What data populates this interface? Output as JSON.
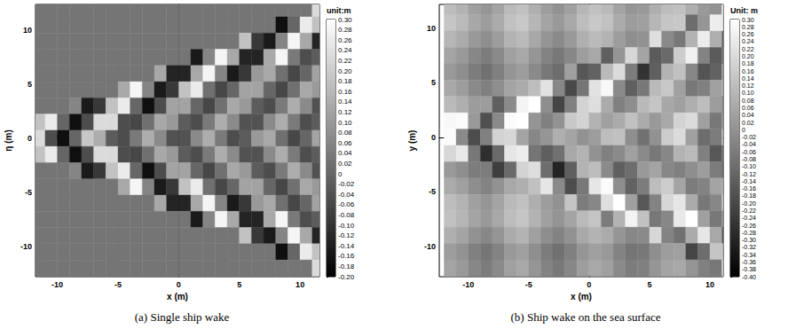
{
  "chart_data": [
    {
      "type": "heatmap",
      "title": "(a) Single ship wake",
      "x_label": "x (m)",
      "y_label": "η (m)",
      "xlim": [
        -11.8,
        11.6
      ],
      "ylim": [
        -12.8,
        12.4
      ],
      "xticks": [
        -10,
        -5,
        0,
        5,
        10
      ],
      "yticks": [
        -10,
        -5,
        0,
        5,
        10
      ],
      "grid": false,
      "x": [
        -11.5,
        -10.5,
        -9.5,
        -8.5,
        -7.5,
        -6.5,
        -5.5,
        -4.5,
        -3.5,
        -2.5,
        -1.5,
        -0.5,
        0.5,
        1.5,
        2.5,
        3.5,
        4.5,
        5.5,
        6.5,
        7.5,
        8.5,
        9.5,
        10.5,
        11.5
      ],
      "y": [
        12,
        10.5,
        9,
        7.5,
        6,
        4.5,
        3,
        1.5,
        0,
        -1.5,
        -3,
        -4.5,
        -6,
        -7.5,
        -9,
        -10.5,
        -12
      ],
      "z": [
        [
          0.03,
          0.03,
          0.03,
          0.03,
          0.03,
          0.03,
          0.03,
          0.03,
          0.03,
          0.03,
          0.03,
          0.03,
          0.03,
          0.03,
          0.03,
          0.03,
          0.03,
          0.03,
          0.03,
          0.03,
          0.03,
          0.03,
          0.03,
          0.23
        ],
        [
          0.03,
          0.03,
          0.03,
          0.03,
          0.03,
          0.03,
          0.03,
          0.03,
          0.03,
          0.03,
          0.03,
          0.03,
          0.03,
          0.03,
          0.03,
          0.03,
          0.03,
          0.03,
          0.03,
          0.03,
          -0.17,
          0,
          0.26,
          0.18
        ],
        [
          0.03,
          0.03,
          0.03,
          0.03,
          0.03,
          0.03,
          0.03,
          0.03,
          0.03,
          0.03,
          0.03,
          0.03,
          0.03,
          0.03,
          0.03,
          0.03,
          0.03,
          0.18,
          -0.09,
          -0.15,
          0.06,
          0.28,
          0.13,
          -0.13
        ],
        [
          0.03,
          0.03,
          0.03,
          0.03,
          0.03,
          0.03,
          0.03,
          0.03,
          0.03,
          0.03,
          0.03,
          0.03,
          0.03,
          -0.15,
          0.06,
          0.28,
          0.13,
          -0.13,
          -0.13,
          0.13,
          0.28,
          0.04,
          -0.05,
          -0.02
        ],
        [
          0.03,
          0.03,
          0.03,
          0.03,
          0.03,
          0.03,
          0.03,
          0.03,
          0.03,
          0.03,
          0.13,
          -0.13,
          -0.13,
          0.13,
          0.28,
          0.06,
          -0.15,
          -0.09,
          0.1,
          0.13,
          0.02,
          -0.06,
          0,
          0.12
        ],
        [
          0.03,
          0.03,
          0.03,
          0.03,
          0.03,
          0.03,
          0.03,
          0.13,
          0.28,
          0.06,
          -0.15,
          -0.09,
          0.18,
          0.26,
          0.02,
          -0.06,
          0,
          0.12,
          0.12,
          0,
          -0.06,
          0.02,
          0.13,
          0.1
        ],
        [
          0.03,
          0.03,
          0.03,
          0.06,
          -0.15,
          -0.09,
          0.18,
          0.26,
          0,
          -0.17,
          -0.05,
          0.12,
          0.12,
          0,
          -0.06,
          0.02,
          0.13,
          0.1,
          -0.02,
          -0.05,
          0.04,
          0.14,
          0.07,
          -0.04
        ],
        [
          0.18,
          0.26,
          0,
          -0.17,
          -0.05,
          0.23,
          0.23,
          -0.05,
          -0.06,
          0.02,
          0.13,
          0.1,
          -0.02,
          -0.05,
          0.04,
          0.14,
          0.07,
          -0.04,
          -0.04,
          0.07,
          0.14,
          0.04,
          -0.05,
          -0.02
        ],
        [
          0.23,
          -0.05,
          -0.17,
          0,
          0.19,
          0.14,
          -0.02,
          -0.05,
          0.04,
          0.14,
          0.07,
          -0.04,
          -0.04,
          0.07,
          0.14,
          0.04,
          -0.05,
          -0.02,
          0.1,
          0.13,
          0.02,
          -0.06,
          0,
          0.12
        ],
        [
          0.18,
          0.26,
          0,
          -0.17,
          -0.05,
          0.23,
          0.23,
          -0.05,
          -0.06,
          0.02,
          0.13,
          0.1,
          -0.02,
          -0.05,
          0.04,
          0.14,
          0.07,
          -0.04,
          -0.04,
          0.07,
          0.14,
          0.04,
          -0.05,
          -0.02
        ],
        [
          0.03,
          0.03,
          0.03,
          0.06,
          -0.15,
          -0.09,
          0.18,
          0.26,
          0,
          -0.17,
          -0.05,
          0.12,
          0.12,
          0,
          -0.06,
          0.02,
          0.13,
          0.1,
          -0.02,
          -0.05,
          0.04,
          0.14,
          0.07,
          -0.04
        ],
        [
          0.03,
          0.03,
          0.03,
          0.03,
          0.03,
          0.03,
          0.03,
          0.13,
          0.28,
          0.06,
          -0.15,
          -0.09,
          0.18,
          0.26,
          0.02,
          -0.06,
          0,
          0.12,
          0.12,
          0,
          -0.06,
          0.02,
          0.13,
          0.1
        ],
        [
          0.03,
          0.03,
          0.03,
          0.03,
          0.03,
          0.03,
          0.03,
          0.03,
          0.03,
          0.03,
          0.13,
          -0.13,
          -0.13,
          0.13,
          0.28,
          0.06,
          -0.15,
          -0.09,
          0.1,
          0.13,
          0.02,
          -0.06,
          0,
          0.12
        ],
        [
          0.03,
          0.03,
          0.03,
          0.03,
          0.03,
          0.03,
          0.03,
          0.03,
          0.03,
          0.03,
          0.03,
          0.03,
          0.03,
          -0.15,
          0.06,
          0.28,
          0.13,
          -0.13,
          -0.13,
          0.13,
          0.28,
          0.04,
          -0.05,
          -0.02
        ],
        [
          0.03,
          0.03,
          0.03,
          0.03,
          0.03,
          0.03,
          0.03,
          0.03,
          0.03,
          0.03,
          0.03,
          0.03,
          0.03,
          0.03,
          0.03,
          0.03,
          0.03,
          0.18,
          -0.09,
          -0.15,
          0.06,
          0.28,
          0.13,
          -0.13
        ],
        [
          0.03,
          0.03,
          0.03,
          0.03,
          0.03,
          0.03,
          0.03,
          0.03,
          0.03,
          0.03,
          0.03,
          0.03,
          0.03,
          0.03,
          0.03,
          0.03,
          0.03,
          0.03,
          0.03,
          0.03,
          -0.17,
          0,
          0.26,
          0.18
        ],
        [
          0.03,
          0.03,
          0.03,
          0.03,
          0.03,
          0.03,
          0.03,
          0.03,
          0.03,
          0.03,
          0.03,
          0.03,
          0.03,
          0.03,
          0.03,
          0.03,
          0.03,
          0.03,
          0.03,
          0.03,
          0.03,
          0.03,
          0.03,
          0.23
        ]
      ],
      "colorbar": {
        "title": "unit:m",
        "range": [
          -0.2,
          0.3
        ],
        "ticks": [
          {
            "value": -0.2,
            "label": "-0.20"
          },
          -0.18,
          -0.16,
          -0.14,
          -0.12,
          {
            "value": -0.1,
            "label": "-0.10"
          },
          -0.08,
          -0.06,
          -0.04,
          -0.02,
          0,
          0.02,
          0.04,
          0.06,
          0.08,
          {
            "value": 0.1,
            "label": "0.10"
          },
          0.12,
          0.14,
          0.16,
          0.18,
          {
            "value": 0.2,
            "label": "0.20"
          },
          0.22,
          0.24,
          0.26,
          0.28,
          {
            "value": 0.3,
            "label": "0.30"
          }
        ]
      }
    },
    {
      "type": "heatmap",
      "title": "(b) Ship wake on the sea surface",
      "x_label": "x (m)",
      "y_label": "y (m)",
      "xlim": [
        -12.4,
        11.1
      ],
      "ylim": [
        -12.8,
        12.2
      ],
      "xticks": [
        -10,
        -5,
        0,
        5,
        10
      ],
      "yticks": [
        -10,
        -5,
        0,
        5,
        10
      ],
      "grid": false,
      "x": [
        -11.5,
        -10.5,
        -9.5,
        -8.5,
        -7.5,
        -6.5,
        -5.5,
        -4.5,
        -3.5,
        -2.5,
        -1.5,
        -0.5,
        0.5,
        1.5,
        2.5,
        3.5,
        4.5,
        5.5,
        6.5,
        7.5,
        8.5,
        9.5,
        10.5,
        11.5
      ],
      "y": [
        12,
        10.5,
        9,
        7.5,
        6,
        4.5,
        3,
        1.5,
        0,
        -1.5,
        -3,
        -4.5,
        -6,
        -7.5,
        -9,
        -10.5,
        -12
      ],
      "z": [
        [
          0.12,
          0.09,
          0.04,
          0.01,
          0.05,
          0.11,
          0.13,
          0.08,
          0.03,
          0,
          0.04,
          0.1,
          0.13,
          0.11,
          0.05,
          0.01,
          0.02,
          0.08,
          0.12,
          0.13,
          0.08,
          0.02,
          0,
          0.25
        ],
        [
          0.14,
          0.11,
          0.06,
          0.03,
          0.07,
          0.13,
          0.15,
          0.1,
          0.05,
          0.02,
          0.06,
          0.12,
          0.15,
          0.13,
          0.07,
          0.03,
          0.04,
          0.1,
          0.14,
          0.15,
          -0.1,
          0.01,
          0.25,
          0.22
        ],
        [
          0.1,
          0.07,
          0.02,
          -0.01,
          0.03,
          0.09,
          0.11,
          0.06,
          0.01,
          -0.02,
          0.02,
          0.08,
          0.11,
          0.09,
          0.03,
          -0.01,
          0,
          0.21,
          -0.02,
          -0.07,
          0.09,
          0.25,
          0.08,
          -0.13
        ],
        [
          0.05,
          0.02,
          -0.03,
          -0.06,
          -0.02,
          0.04,
          0.06,
          0.01,
          -0.04,
          -0.07,
          -0.03,
          0.03,
          0.06,
          -0.14,
          0.01,
          0.19,
          0.05,
          -0.15,
          -0.11,
          0.16,
          0.26,
          -0.04,
          -0.15,
          -0.07
        ],
        [
          0.02,
          -0.01,
          -0.06,
          -0.09,
          -0.05,
          0.01,
          0.03,
          -0.02,
          -0.07,
          -0.1,
          0.04,
          -0.16,
          -0.13,
          0.11,
          0.2,
          -0.06,
          -0.26,
          -0.14,
          0.09,
          0.13,
          -0.03,
          -0.17,
          -0.13,
          0.04
        ],
        [
          0.06,
          0.03,
          -0.02,
          -0.05,
          -0.01,
          0.05,
          0.07,
          0.12,
          0.22,
          -0.03,
          -0.2,
          -0.08,
          0.22,
          0.28,
          -0.02,
          -0.14,
          -0.07,
          0.11,
          0.15,
          0.04,
          -0.07,
          -0.05,
          0.04,
          0.06
        ],
        [
          0.11,
          0.08,
          0.03,
          0.03,
          -0.14,
          -0.02,
          0.27,
          0.3,
          -0.01,
          -0.21,
          -0.05,
          0.18,
          0.21,
          0.07,
          -0.05,
          -0.01,
          0.11,
          0.14,
          0.06,
          0.04,
          0.08,
          0.12,
          0.03,
          -0.03
        ],
        [
          0.28,
          0.29,
          0.02,
          -0.18,
          -0.02,
          0.29,
          0.3,
          0.01,
          -0.05,
          0,
          0.15,
          0.18,
          0.09,
          0.04,
          0.07,
          0.13,
          0.07,
          0.02,
          0.06,
          0.18,
          0.2,
          0.04,
          -0.07,
          0.01
        ],
        [
          0.29,
          -0.02,
          -0.19,
          -0.05,
          0.18,
          0.19,
          0.05,
          -0.03,
          0.01,
          0.08,
          0.05,
          0,
          0.03,
          0.12,
          0.13,
          -0.01,
          -0.09,
          0,
          0.16,
          0.2,
          0.04,
          -0.1,
          -0.06,
          0.11
        ],
        [
          0.19,
          0.24,
          -0.07,
          -0.27,
          -0.11,
          0.23,
          0.25,
          -0.08,
          -0.14,
          -0.09,
          0.06,
          0.09,
          0,
          -0.05,
          -0.02,
          0.04,
          -0.02,
          -0.07,
          -0.03,
          0.09,
          0.11,
          -0.05,
          -0.16,
          -0.08
        ],
        [
          0.02,
          -0.01,
          -0.06,
          -0.06,
          -0.23,
          -0.11,
          0.18,
          0.21,
          -0.1,
          -0.3,
          -0.14,
          0.09,
          0.12,
          -0.02,
          -0.14,
          -0.1,
          0.02,
          0.05,
          -0.03,
          -0.05,
          -0.01,
          0.03,
          -0.06,
          -0.12
        ],
        [
          0.07,
          0.04,
          -0.01,
          -0.04,
          0,
          0.06,
          0.08,
          0.13,
          0.23,
          -0.02,
          -0.19,
          -0.07,
          0.23,
          0.29,
          -0.01,
          -0.13,
          -0.06,
          0.12,
          0.16,
          0.05,
          -0.06,
          -0.04,
          0.05,
          0.07
        ],
        [
          0.12,
          0.09,
          0.04,
          0.01,
          0.05,
          0.11,
          0.13,
          0.08,
          0.03,
          0,
          0.14,
          -0.06,
          -0.03,
          0.21,
          0.3,
          0.04,
          -0.16,
          -0.04,
          0.19,
          0.23,
          0.07,
          -0.07,
          -0.03,
          0.14
        ],
        [
          0.13,
          0.1,
          0.05,
          0.02,
          0.06,
          0.12,
          0.14,
          0.09,
          0.04,
          0.01,
          0.05,
          0.11,
          0.14,
          -0.06,
          0.09,
          0.27,
          0.13,
          -0.07,
          -0.03,
          0.24,
          0.3,
          0.04,
          -0.07,
          0.01
        ],
        [
          0.08,
          0.05,
          0,
          -0.03,
          0.01,
          0.07,
          0.09,
          0.04,
          -0.01,
          -0.04,
          0,
          0.06,
          0.09,
          0.07,
          0.01,
          -0.03,
          -0.02,
          0.19,
          -0.04,
          -0.09,
          0.07,
          0.23,
          0.06,
          -0.15
        ],
        [
          0.03,
          0,
          -0.05,
          -0.08,
          -0.04,
          0.02,
          0.04,
          -0.01,
          -0.06,
          -0.09,
          -0.05,
          0.01,
          0.04,
          0.02,
          -0.04,
          -0.08,
          -0.07,
          -0.01,
          0.03,
          0.04,
          -0.21,
          -0.1,
          0.14,
          0.11
        ],
        [
          0.05,
          0.02,
          -0.03,
          -0.06,
          -0.02,
          0.04,
          0.06,
          0.01,
          -0.04,
          -0.07,
          -0.03,
          0.03,
          0.06,
          0.04,
          -0.02,
          -0.06,
          -0.05,
          0.01,
          0.05,
          0.06,
          0.01,
          -0.05,
          -0.07,
          0.18
        ]
      ],
      "colorbar": {
        "title": "Unit: m",
        "range": [
          -0.4,
          0.3
        ],
        "ticks": [
          {
            "value": -0.4,
            "label": "-0.40"
          },
          -0.38,
          -0.36,
          -0.34,
          -0.32,
          {
            "value": -0.3,
            "label": "-0.30"
          },
          -0.28,
          -0.26,
          -0.24,
          -0.22,
          {
            "value": -0.2,
            "label": "-0.20"
          },
          -0.18,
          -0.16,
          -0.14,
          -0.12,
          {
            "value": -0.1,
            "label": "-0.10"
          },
          -0.08,
          -0.06,
          -0.04,
          -0.02,
          0,
          0.02,
          0.04,
          0.06,
          0.08,
          {
            "value": 0.1,
            "label": "0.10"
          },
          0.12,
          0.14,
          0.16,
          0.18,
          {
            "value": 0.2,
            "label": "0.20"
          },
          0.22,
          0.24,
          0.26,
          0.28,
          {
            "value": 0.3,
            "label": "0.30"
          }
        ]
      }
    }
  ]
}
